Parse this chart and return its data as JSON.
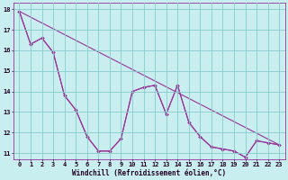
{
  "xlabel": "Windchill (Refroidissement éolien,°C)",
  "bg_color": "#c8eef0",
  "grid_color": "#88cccc",
  "line_color": "#993399",
  "xlim": [
    -0.5,
    23.5
  ],
  "ylim": [
    10.7,
    18.3
  ],
  "yticks": [
    11,
    12,
    13,
    14,
    15,
    16,
    17,
    18
  ],
  "xticks": [
    0,
    1,
    2,
    3,
    4,
    5,
    6,
    7,
    8,
    9,
    10,
    11,
    12,
    13,
    14,
    15,
    16,
    17,
    18,
    19,
    20,
    21,
    22,
    23
  ],
  "line1_x": [
    0,
    1,
    2,
    3,
    4,
    5,
    6,
    7,
    8,
    9,
    10,
    11,
    12,
    13,
    14,
    15,
    16,
    17,
    18,
    19,
    20,
    21,
    22,
    23
  ],
  "line1_y": [
    17.9,
    16.3,
    16.6,
    15.9,
    13.8,
    13.1,
    11.8,
    11.1,
    11.1,
    11.7,
    14.0,
    14.2,
    14.3,
    12.9,
    14.3,
    12.5,
    11.8,
    11.3,
    11.2,
    11.1,
    10.8,
    11.6,
    11.5,
    11.4
  ],
  "line2_x": [
    0,
    23
  ],
  "line2_y": [
    17.9,
    11.4
  ],
  "line3_x": [
    0,
    1,
    2,
    3,
    4,
    5,
    6,
    7,
    8,
    9,
    10,
    11,
    12,
    13,
    14,
    15,
    16,
    17,
    18,
    19,
    20,
    21,
    22,
    23
  ],
  "line3_y": [
    17.9,
    16.3,
    16.6,
    15.9,
    13.8,
    13.1,
    11.8,
    11.1,
    11.1,
    11.7,
    14.0,
    14.2,
    14.3,
    12.9,
    14.3,
    12.5,
    11.8,
    11.3,
    11.2,
    11.1,
    10.8,
    11.6,
    11.5,
    11.4
  ],
  "tick_fontsize": 5.0,
  "xlabel_fontsize": 5.5,
  "marker_size": 2.0
}
